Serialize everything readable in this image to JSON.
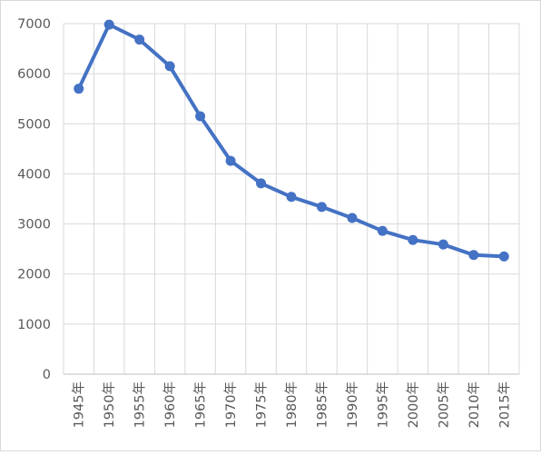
{
  "chart_data": {
    "type": "line",
    "title": "",
    "xlabel": "",
    "ylabel": "",
    "categories": [
      "1945年",
      "1950年",
      "1955年",
      "1960年",
      "1965年",
      "1970年",
      "1975年",
      "1980年",
      "1985年",
      "1990年",
      "1995年",
      "2000年",
      "2005年",
      "2010年",
      "2015年"
    ],
    "series": [
      {
        "values": [
          5700,
          6980,
          6680,
          6150,
          5150,
          4260,
          3810,
          3540,
          3340,
          3120,
          2860,
          2680,
          2590,
          2380,
          2350
        ]
      }
    ],
    "ylim": [
      0,
      7000
    ],
    "yticks": [
      0,
      1000,
      2000,
      3000,
      4000,
      5000,
      6000,
      7000
    ],
    "grid": true,
    "legend": "none",
    "colors": {
      "series": "#4472c4",
      "grid": "#d9d9d9",
      "text": "#595959"
    }
  }
}
